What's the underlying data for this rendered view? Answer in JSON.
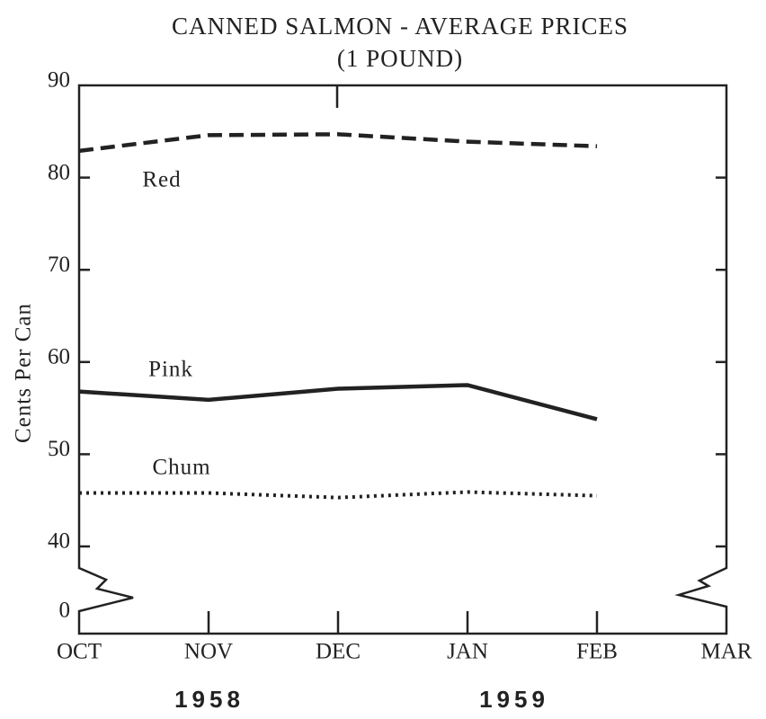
{
  "chart_data": {
    "type": "line",
    "title": "CANNED SALMON - AVERAGE PRICES",
    "subtitle": "(1 POUND)",
    "y_label": "Cents Per Can",
    "categories": [
      "OCT",
      "NOV",
      "DEC",
      "JAN",
      "FEB",
      "MAR"
    ],
    "annotations": [
      "1958",
      "1959"
    ],
    "ylim": [
      40,
      90
    ],
    "yticks": [
      0,
      40,
      50,
      60,
      70,
      80,
      90
    ],
    "axis_break": true,
    "series": [
      {
        "name": "Red",
        "color": "#222222",
        "style": "dashed",
        "values": [
          82.9,
          84.6,
          84.7,
          83.9,
          83.4,
          null
        ]
      },
      {
        "name": "Pink",
        "color": "#222222",
        "style": "solid",
        "values": [
          56.8,
          55.9,
          57.1,
          57.5,
          53.8,
          null
        ]
      },
      {
        "name": "Chum",
        "color": "#222222",
        "style": "dotted",
        "values": [
          45.8,
          45.8,
          45.3,
          45.9,
          45.5,
          null
        ]
      }
    ]
  }
}
